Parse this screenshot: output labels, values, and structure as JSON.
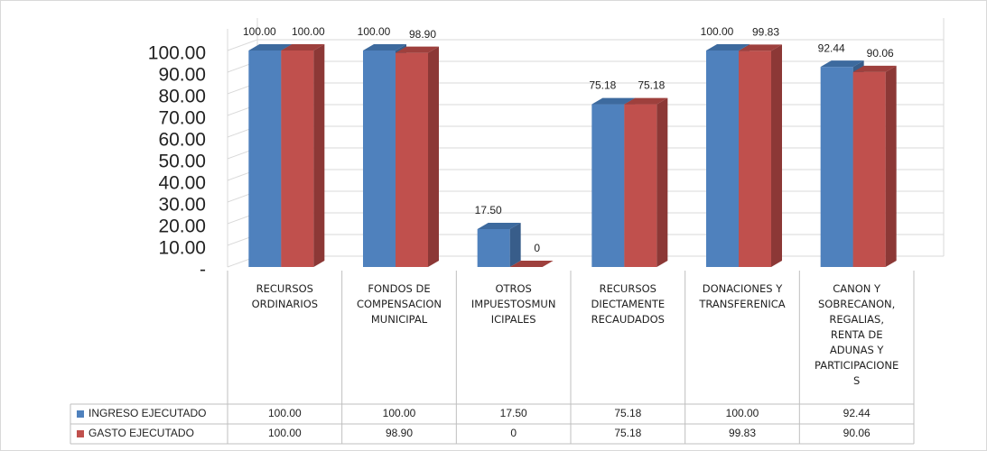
{
  "chart_data": {
    "type": "bar3d",
    "categories": [
      "RECURSOS ORDINARIOS",
      "FONDOS DE COMPENSACION MUNICIPAL",
      "OTROS IMPUESTOSMUNICIPALES",
      "RECURSOS DIECTAMENTE RECAUDADOS",
      "DONACIONES Y TRANSFERENICA",
      "CANON Y SOBRECANON, REGALIAS, RENTA DE ADUNAS Y PARTICIPACIONES"
    ],
    "series": [
      {
        "name": "INGRESO EJECUTADO",
        "color": "#4f81bd",
        "side_color": "#385d8a",
        "top_color": "#3d6a9e",
        "values": [
          100,
          100,
          17.5,
          75.18,
          100,
          92.44
        ],
        "value_labels": [
          "100.00",
          "100.00",
          "17.50",
          "75.18",
          "100.00",
          "92.44"
        ]
      },
      {
        "name": "GASTO EJECUTADO",
        "color": "#c0504d",
        "side_color": "#8c3836",
        "top_color": "#9e403d",
        "values": [
          100,
          98.9,
          0,
          75.18,
          99.83,
          90.06
        ],
        "value_labels": [
          "100.00",
          "98.90",
          "0",
          "75.18",
          "99.83",
          "90.06"
        ]
      }
    ],
    "ylim": [
      0,
      110
    ],
    "yticks": [
      {
        "value": 0,
        "label": "-"
      },
      {
        "value": 10,
        "label": "10.00"
      },
      {
        "value": 20,
        "label": "20.00"
      },
      {
        "value": 30,
        "label": "30.00"
      },
      {
        "value": 40,
        "label": "40.00"
      },
      {
        "value": 50,
        "label": "50.00"
      },
      {
        "value": 60,
        "label": "60.00"
      },
      {
        "value": 70,
        "label": "70.00"
      },
      {
        "value": 80,
        "label": "80.00"
      },
      {
        "value": 90,
        "label": "90.00"
      },
      {
        "value": 100,
        "label": "100.00"
      }
    ],
    "grid": true
  }
}
